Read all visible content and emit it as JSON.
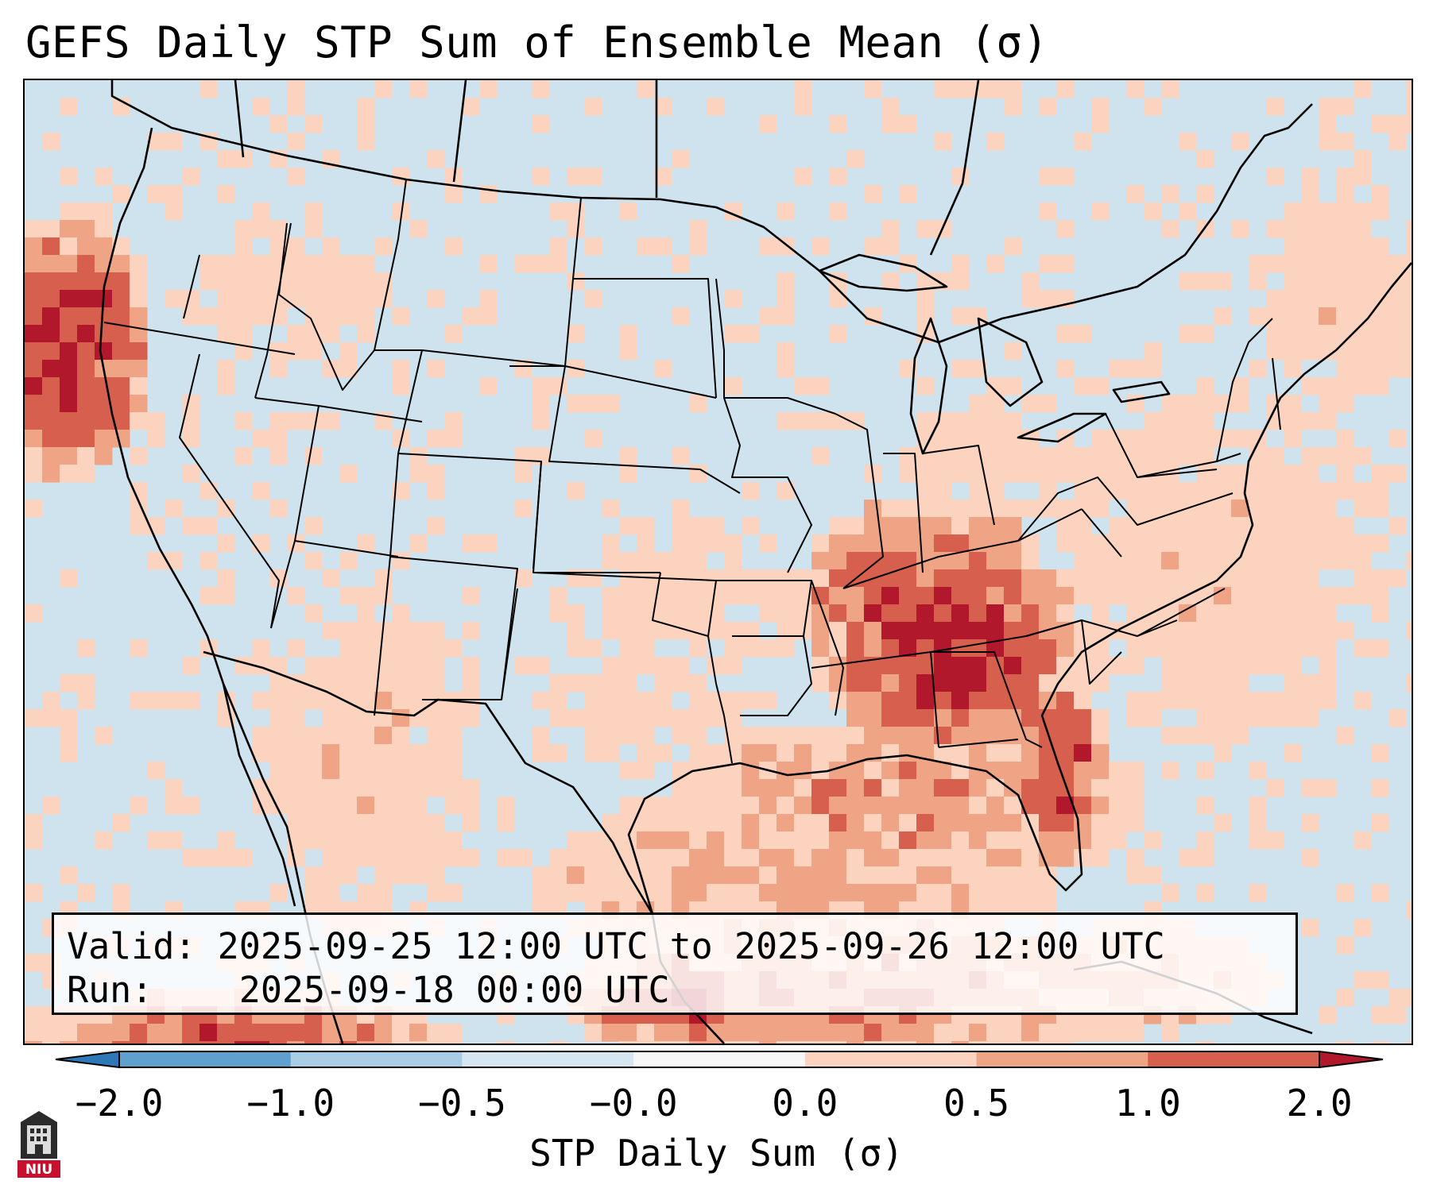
{
  "title": "GEFS Daily STP Sum of Ensemble Mean (σ)",
  "info": {
    "valid_label": "Valid:",
    "valid_value": "2025-09-25 12:00 UTC to 2025-09-26 12:00 UTC",
    "run_label": "Run:",
    "run_value": "2025-09-18 00:00 UTC"
  },
  "colorbar": {
    "label": "STP Daily Sum (σ)",
    "ticks": [
      "−2.0",
      "−1.0",
      "−0.5",
      "−0.0",
      "0.0",
      "0.5",
      "1.0",
      "2.0"
    ],
    "colors": [
      "#2e78b7",
      "#5fa0cf",
      "#a9cde4",
      "#d6e6f1",
      "#f7f7f7",
      "#fbd3bf",
      "#f0a486",
      "#d6604d",
      "#b2182b"
    ],
    "extend": "both"
  },
  "map": {
    "region": "Contiguous United States, northern Mexico and Gulf of Mexico",
    "background_color": "#cfe3ef",
    "highlights": [
      {
        "area": "Tennessee Valley / Alabama / Georgia",
        "category": "1.0-2.0"
      },
      {
        "area": "Florida Atlantic coast",
        "category": "1.0-2.0"
      },
      {
        "area": "Kentucky",
        "category": "1.0-2.0"
      },
      {
        "area": "Gulf of Mexico",
        "category": "0.5-2.0"
      },
      {
        "area": "Pacific Northwest offshore",
        "category": "1.0-2.0"
      }
    ]
  },
  "logo": {
    "text": "NIU"
  }
}
